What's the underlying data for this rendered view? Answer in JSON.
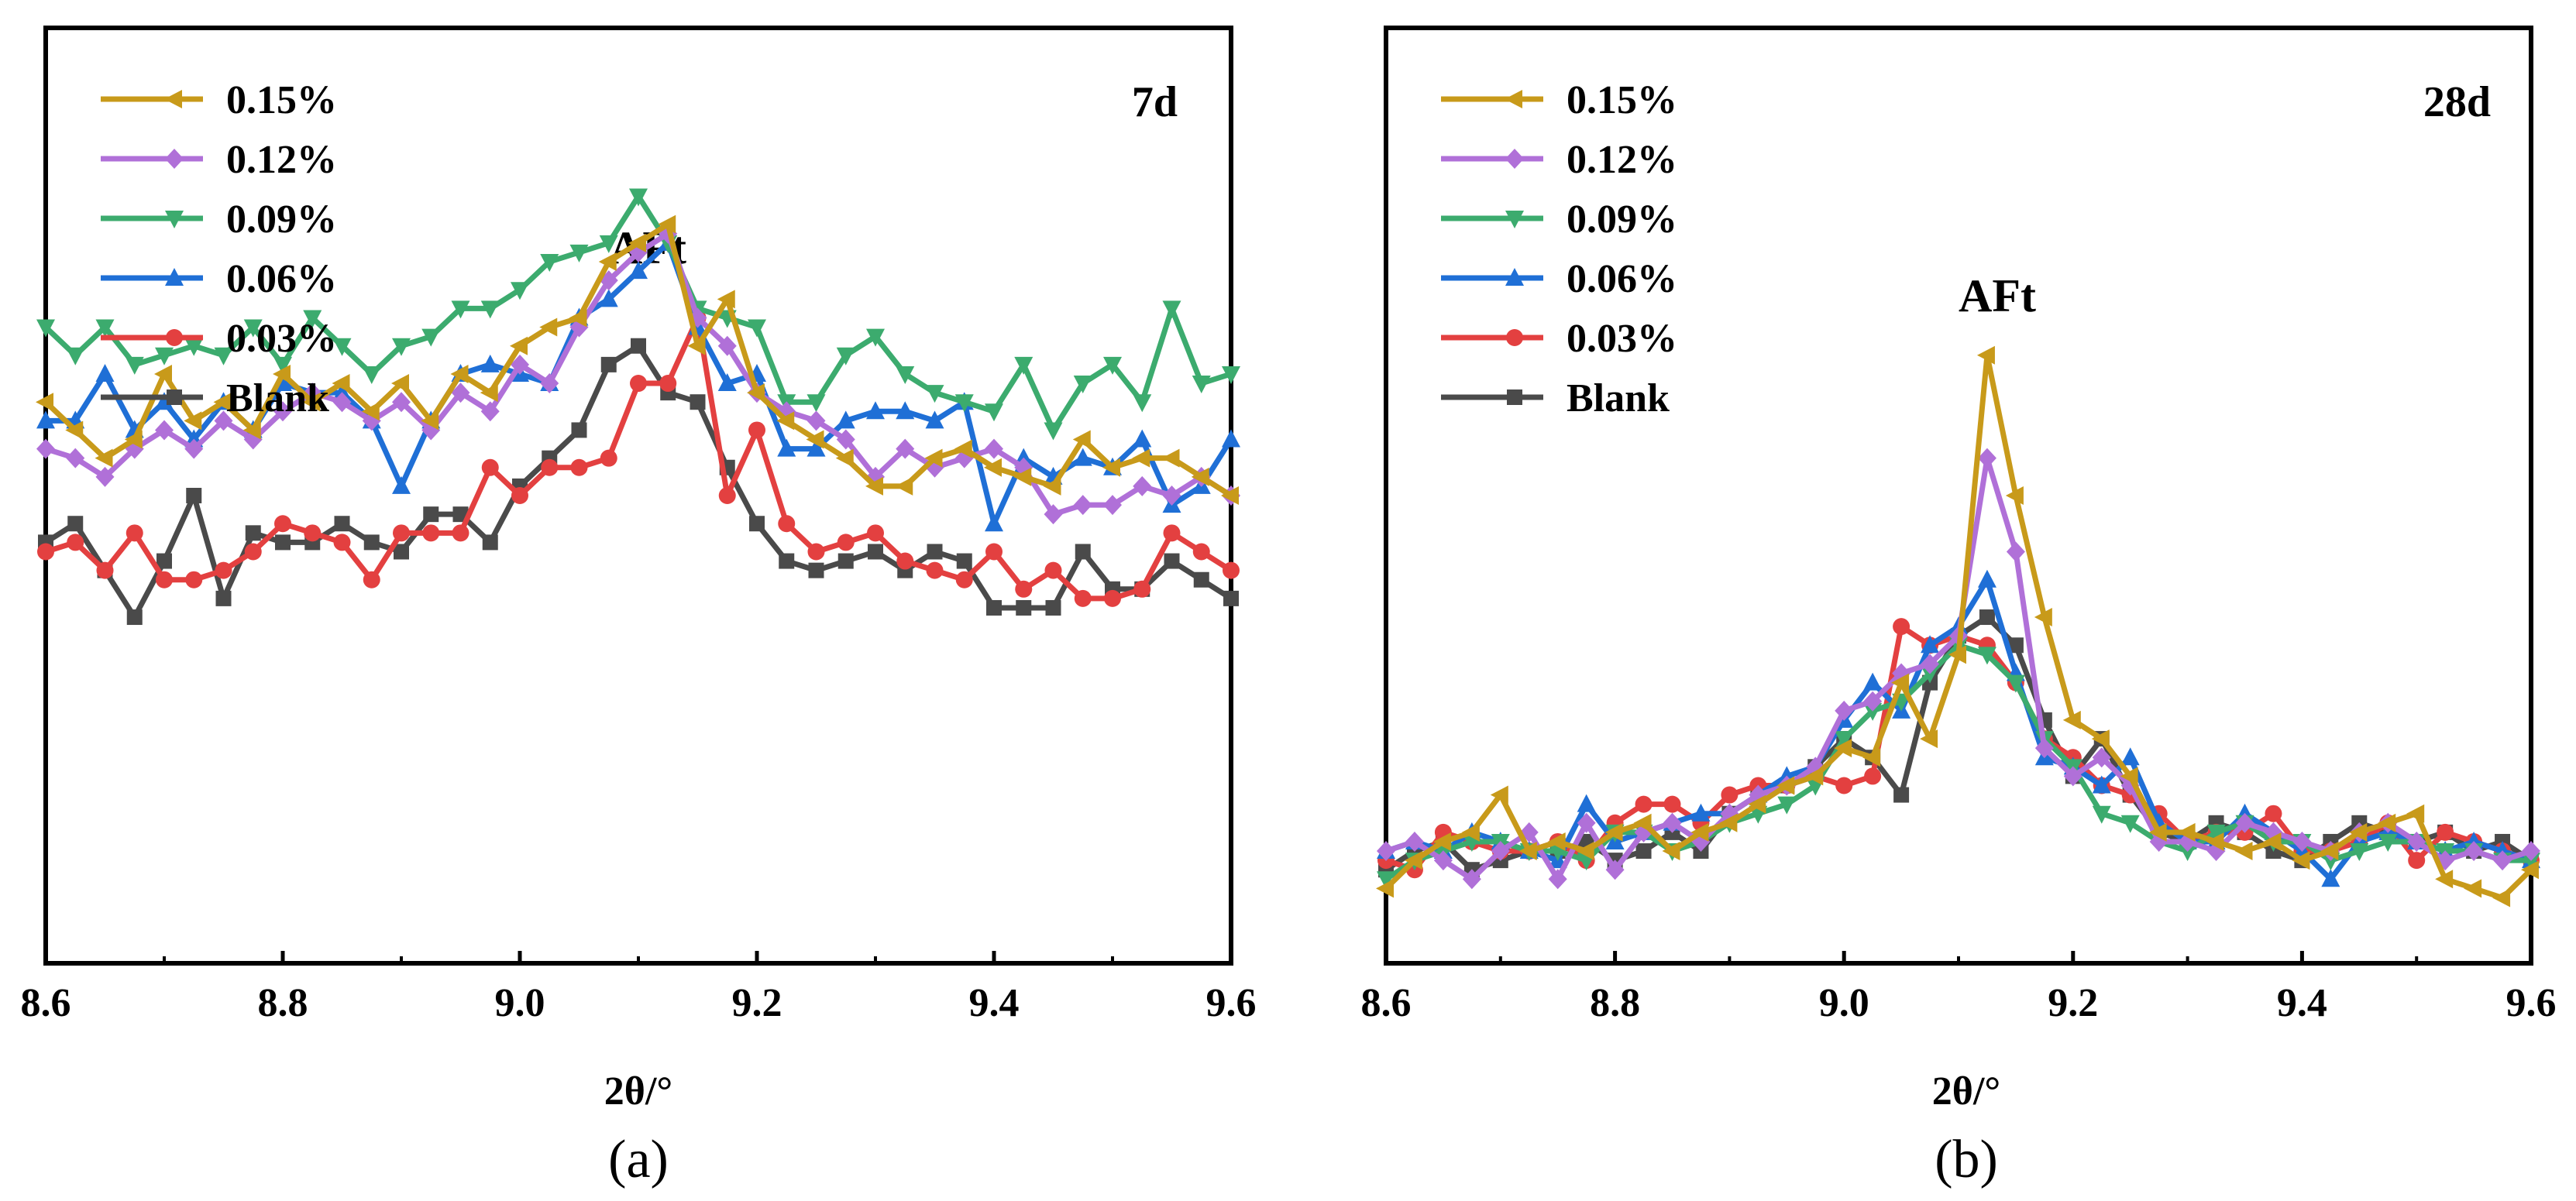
{
  "chart_data": [
    {
      "type": "line",
      "panel_label": "(a)",
      "tag": "7d",
      "annotation": "AFt",
      "xlabel": "2θ/°",
      "ylabel": "",
      "xlim": [
        8.6,
        9.6
      ],
      "ylim": [
        0,
        1
      ],
      "x_ticks": [
        "8.6",
        "8.8",
        "9.0",
        "9.2",
        "9.4",
        "9.6"
      ],
      "legend_position": "top-left",
      "x": [
        8.6,
        8.625,
        8.65,
        8.675,
        8.7,
        8.725,
        8.75,
        8.775,
        8.8,
        8.825,
        8.85,
        8.875,
        8.9,
        8.925,
        8.95,
        8.975,
        9.0,
        9.025,
        9.05,
        9.075,
        9.1,
        9.125,
        9.15,
        9.175,
        9.2,
        9.225,
        9.25,
        9.275,
        9.3,
        9.325,
        9.35,
        9.375,
        9.4,
        9.425,
        9.45,
        9.475,
        9.5,
        9.525,
        9.55,
        9.575,
        9.6
      ],
      "series": [
        {
          "name": "0.15%",
          "color": "#c89a1a",
          "marker": "triangle-left",
          "values": [
            0.6,
            0.57,
            0.54,
            0.56,
            0.63,
            0.58,
            0.6,
            0.57,
            0.63,
            0.6,
            0.62,
            0.59,
            0.62,
            0.58,
            0.63,
            0.61,
            0.66,
            0.68,
            0.69,
            0.75,
            0.77,
            0.79,
            0.66,
            0.71,
            0.61,
            0.58,
            0.56,
            0.54,
            0.51,
            0.51,
            0.54,
            0.55,
            0.53,
            0.52,
            0.51,
            0.56,
            0.53,
            0.54,
            0.54,
            0.52,
            0.5
          ]
        },
        {
          "name": "0.12%",
          "color": "#b070d8",
          "marker": "diamond",
          "values": [
            0.55,
            0.54,
            0.52,
            0.55,
            0.57,
            0.55,
            0.58,
            0.56,
            0.59,
            0.61,
            0.6,
            0.58,
            0.6,
            0.57,
            0.61,
            0.59,
            0.64,
            0.62,
            0.68,
            0.73,
            0.76,
            0.78,
            0.69,
            0.66,
            0.61,
            0.59,
            0.58,
            0.56,
            0.52,
            0.55,
            0.53,
            0.54,
            0.55,
            0.53,
            0.48,
            0.49,
            0.49,
            0.51,
            0.5,
            0.52,
            0.5
          ]
        },
        {
          "name": "0.09%",
          "color": "#3cab6e",
          "marker": "triangle-down",
          "values": [
            0.68,
            0.65,
            0.68,
            0.64,
            0.65,
            0.66,
            0.65,
            0.68,
            0.64,
            0.69,
            0.66,
            0.63,
            0.66,
            0.67,
            0.7,
            0.7,
            0.72,
            0.75,
            0.76,
            0.77,
            0.82,
            0.77,
            0.7,
            0.69,
            0.68,
            0.6,
            0.6,
            0.65,
            0.67,
            0.63,
            0.61,
            0.6,
            0.59,
            0.64,
            0.57,
            0.62,
            0.64,
            0.6,
            0.7,
            0.62,
            0.63
          ]
        },
        {
          "name": "0.06%",
          "color": "#1f6fd6",
          "marker": "triangle-up",
          "values": [
            0.58,
            0.58,
            0.63,
            0.57,
            0.6,
            0.56,
            0.6,
            0.57,
            0.62,
            0.61,
            0.61,
            0.58,
            0.51,
            0.58,
            0.63,
            0.64,
            0.63,
            0.62,
            0.69,
            0.71,
            0.74,
            0.77,
            0.68,
            0.62,
            0.63,
            0.55,
            0.55,
            0.58,
            0.59,
            0.59,
            0.58,
            0.6,
            0.47,
            0.54,
            0.52,
            0.54,
            0.53,
            0.56,
            0.49,
            0.51,
            0.56
          ]
        },
        {
          "name": "0.03%",
          "color": "#e34040",
          "marker": "circle",
          "values": [
            0.44,
            0.45,
            0.42,
            0.46,
            0.41,
            0.41,
            0.42,
            0.44,
            0.47,
            0.46,
            0.45,
            0.41,
            0.46,
            0.46,
            0.46,
            0.53,
            0.5,
            0.53,
            0.53,
            0.54,
            0.62,
            0.62,
            0.69,
            0.5,
            0.57,
            0.47,
            0.44,
            0.45,
            0.46,
            0.43,
            0.42,
            0.41,
            0.44,
            0.4,
            0.42,
            0.39,
            0.39,
            0.4,
            0.46,
            0.44,
            0.42
          ]
        },
        {
          "name": "Blank",
          "color": "#4a4a4a",
          "marker": "square",
          "values": [
            0.45,
            0.47,
            0.42,
            0.37,
            0.43,
            0.5,
            0.39,
            0.46,
            0.45,
            0.45,
            0.47,
            0.45,
            0.44,
            0.48,
            0.48,
            0.45,
            0.51,
            0.54,
            0.57,
            0.64,
            0.66,
            0.61,
            0.6,
            0.53,
            0.47,
            0.43,
            0.42,
            0.43,
            0.44,
            0.42,
            0.44,
            0.43,
            0.38,
            0.38,
            0.38,
            0.44,
            0.4,
            0.4,
            0.43,
            0.41,
            0.39
          ]
        }
      ]
    },
    {
      "type": "line",
      "panel_label": "(b)",
      "tag": "28d",
      "annotation": "AFt",
      "xlabel": "2θ/°",
      "ylabel": "",
      "xlim": [
        8.6,
        9.6
      ],
      "ylim": [
        0,
        1
      ],
      "x_ticks": [
        "8.6",
        "8.8",
        "9.0",
        "9.2",
        "9.4",
        "9.6"
      ],
      "legend_position": "top-left",
      "x": [
        8.6,
        8.625,
        8.65,
        8.675,
        8.7,
        8.725,
        8.75,
        8.775,
        8.8,
        8.825,
        8.85,
        8.875,
        8.9,
        8.925,
        8.95,
        8.975,
        9.0,
        9.025,
        9.05,
        9.075,
        9.1,
        9.125,
        9.15,
        9.175,
        9.2,
        9.225,
        9.25,
        9.275,
        9.3,
        9.325,
        9.35,
        9.375,
        9.4,
        9.425,
        9.45,
        9.475,
        9.5,
        9.525,
        9.55,
        9.575,
        9.6
      ],
      "series": [
        {
          "name": "0.15%",
          "color": "#c89a1a",
          "marker": "triangle-left",
          "values": [
            0.08,
            0.11,
            0.13,
            0.14,
            0.18,
            0.12,
            0.13,
            0.12,
            0.14,
            0.15,
            0.12,
            0.14,
            0.15,
            0.17,
            0.19,
            0.2,
            0.23,
            0.22,
            0.3,
            0.24,
            0.33,
            0.65,
            0.5,
            0.37,
            0.26,
            0.24,
            0.2,
            0.14,
            0.14,
            0.13,
            0.12,
            0.13,
            0.11,
            0.12,
            0.14,
            0.15,
            0.16,
            0.09,
            0.08,
            0.07,
            0.1
          ]
        },
        {
          "name": "0.12%",
          "color": "#b070d8",
          "marker": "diamond",
          "values": [
            0.12,
            0.13,
            0.11,
            0.09,
            0.12,
            0.14,
            0.09,
            0.15,
            0.1,
            0.14,
            0.15,
            0.13,
            0.16,
            0.18,
            0.19,
            0.21,
            0.27,
            0.28,
            0.31,
            0.32,
            0.35,
            0.54,
            0.44,
            0.23,
            0.2,
            0.22,
            0.19,
            0.13,
            0.13,
            0.12,
            0.15,
            0.14,
            0.13,
            0.12,
            0.14,
            0.15,
            0.13,
            0.11,
            0.12,
            0.11,
            0.12
          ]
        },
        {
          "name": "0.09%",
          "color": "#3cab6e",
          "marker": "triangle-down",
          "values": [
            0.09,
            0.11,
            0.12,
            0.13,
            0.13,
            0.12,
            0.12,
            0.11,
            0.14,
            0.14,
            0.12,
            0.13,
            0.15,
            0.16,
            0.17,
            0.19,
            0.24,
            0.27,
            0.28,
            0.31,
            0.34,
            0.33,
            0.3,
            0.24,
            0.21,
            0.16,
            0.15,
            0.13,
            0.12,
            0.14,
            0.15,
            0.13,
            0.13,
            0.11,
            0.12,
            0.13,
            0.13,
            0.12,
            0.12,
            0.11,
            0.11
          ]
        },
        {
          "name": "0.06%",
          "color": "#1f6fd6",
          "marker": "triangle-up",
          "values": [
            0.12,
            0.13,
            0.12,
            0.14,
            0.13,
            0.12,
            0.11,
            0.17,
            0.13,
            0.14,
            0.15,
            0.16,
            0.16,
            0.18,
            0.2,
            0.21,
            0.26,
            0.3,
            0.27,
            0.34,
            0.36,
            0.41,
            0.31,
            0.22,
            0.21,
            0.19,
            0.22,
            0.15,
            0.13,
            0.13,
            0.16,
            0.14,
            0.12,
            0.09,
            0.13,
            0.14,
            0.13,
            0.12,
            0.13,
            0.12,
            0.11
          ]
        },
        {
          "name": "0.03%",
          "color": "#e34040",
          "marker": "circle",
          "values": [
            0.11,
            0.1,
            0.14,
            0.13,
            0.12,
            0.12,
            0.13,
            0.11,
            0.15,
            0.17,
            0.17,
            0.15,
            0.18,
            0.19,
            0.19,
            0.2,
            0.19,
            0.2,
            0.36,
            0.34,
            0.35,
            0.34,
            0.3,
            0.24,
            0.22,
            0.19,
            0.18,
            0.16,
            0.13,
            0.14,
            0.14,
            0.16,
            0.12,
            0.12,
            0.13,
            0.15,
            0.11,
            0.14,
            0.13,
            0.12,
            0.11
          ]
        },
        {
          "name": "Blank",
          "color": "#4a4a4a",
          "marker": "square",
          "values": [
            0.1,
            0.12,
            0.13,
            0.1,
            0.11,
            0.12,
            0.12,
            0.13,
            0.11,
            0.12,
            0.14,
            0.12,
            0.16,
            0.18,
            0.19,
            0.21,
            0.24,
            0.22,
            0.18,
            0.3,
            0.35,
            0.37,
            0.34,
            0.26,
            0.2,
            0.24,
            0.18,
            0.14,
            0.13,
            0.15,
            0.14,
            0.12,
            0.11,
            0.13,
            0.15,
            0.14,
            0.13,
            0.14,
            0.12,
            0.13,
            0.11
          ]
        }
      ]
    }
  ]
}
